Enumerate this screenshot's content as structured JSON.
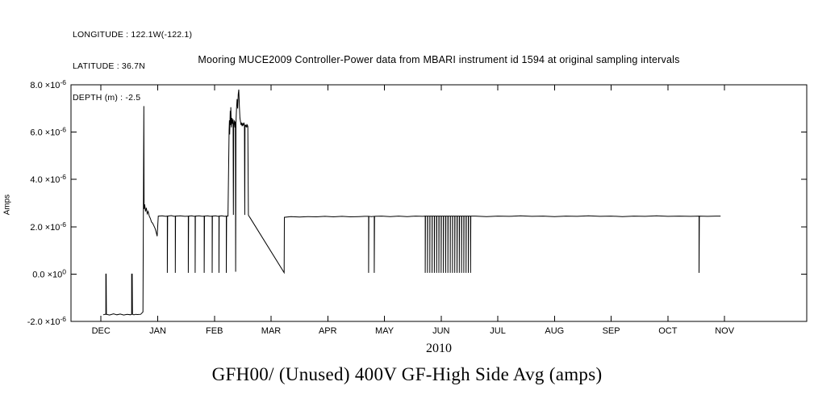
{
  "meta": {
    "longitude": "LONGITUDE : 122.1W(-122.1)",
    "latitude": "LATITUDE : 36.7N",
    "depth": "DEPTH (m) : -2.5"
  },
  "chart_data": {
    "type": "line",
    "title": "Mooring MUCE2009 Controller-Power data from MBARI instrument id 1594 at original sampling intervals",
    "bottom_title": "GFH00/ (Unused) 400V GF-High Side Avg (amps)",
    "xlabel": "2010",
    "ylabel": "Amps",
    "y_units": "amps",
    "y_scale": "1e-6",
    "grid": false,
    "line_color": "#000000",
    "background": "#ffffff",
    "xlim": [
      -0.53,
      12.45
    ],
    "ylim": [
      -2,
      8
    ],
    "x_ticks": [
      {
        "value": 0,
        "label": "DEC"
      },
      {
        "value": 1,
        "label": "JAN"
      },
      {
        "value": 2,
        "label": "FEB"
      },
      {
        "value": 3,
        "label": "MAR"
      },
      {
        "value": 4,
        "label": "APR"
      },
      {
        "value": 5,
        "label": "MAY"
      },
      {
        "value": 6,
        "label": "JUN"
      },
      {
        "value": 7,
        "label": "JUL"
      },
      {
        "value": 8,
        "label": "AUG"
      },
      {
        "value": 9,
        "label": "SEP"
      },
      {
        "value": 10,
        "label": "OCT"
      },
      {
        "value": 11,
        "label": "NOV"
      }
    ],
    "y_ticks": [
      {
        "value": 8,
        "prefix": "8.0 ×10",
        "exponent": "-6",
        "label": "8.0 ×10^-6"
      },
      {
        "value": 6,
        "prefix": "6.0 ×10",
        "exponent": "-6",
        "label": "6.0 ×10^-6"
      },
      {
        "value": 4,
        "prefix": "4.0 ×10",
        "exponent": "-6",
        "label": "4.0 ×10^-6"
      },
      {
        "value": 2,
        "prefix": "2.0 ×10",
        "exponent": "-6",
        "label": "2.0 ×10^-6"
      },
      {
        "value": 0,
        "prefix": "0.0 ×10",
        "exponent": "0",
        "label": "0.0 ×10^0"
      },
      {
        "value": -2,
        "prefix": "-2.0 ×10",
        "exponent": "-6",
        "label": "-2.0 ×10^-6"
      }
    ],
    "series": [
      {
        "name": "GFH00 400V GF-High Side Avg",
        "x_units": "months (0 = DEC 2009)",
        "points": [
          [
            0.04,
            -1.72
          ],
          [
            0.07,
            -1.7
          ],
          [
            0.085,
            -1.7
          ],
          [
            0.085,
            0.0
          ],
          [
            0.09,
            0.0
          ],
          [
            0.095,
            -1.7
          ],
          [
            0.15,
            -1.73
          ],
          [
            0.22,
            -1.68
          ],
          [
            0.28,
            -1.72
          ],
          [
            0.34,
            -1.69
          ],
          [
            0.4,
            -1.73
          ],
          [
            0.46,
            -1.7
          ],
          [
            0.52,
            -1.72
          ],
          [
            0.54,
            -1.7
          ],
          [
            0.54,
            0.0
          ],
          [
            0.55,
            0.0
          ],
          [
            0.555,
            -1.7
          ],
          [
            0.58,
            -1.72
          ],
          [
            0.61,
            -1.7
          ],
          [
            0.64,
            -1.71
          ],
          [
            0.7,
            -1.7
          ],
          [
            0.74,
            -1.6
          ],
          [
            0.755,
            7.1
          ],
          [
            0.76,
            2.75
          ],
          [
            0.77,
            2.95
          ],
          [
            0.785,
            2.65
          ],
          [
            0.8,
            2.8
          ],
          [
            0.815,
            2.55
          ],
          [
            0.83,
            2.65
          ],
          [
            0.85,
            2.45
          ],
          [
            0.87,
            2.35
          ],
          [
            0.89,
            2.2
          ],
          [
            0.91,
            2.15
          ],
          [
            0.93,
            2.05
          ],
          [
            0.95,
            1.95
          ],
          [
            0.965,
            1.85
          ],
          [
            0.98,
            1.7
          ],
          [
            0.99,
            1.6
          ],
          [
            1.01,
            2.45
          ],
          [
            1.08,
            2.46
          ],
          [
            1.14,
            2.44
          ],
          [
            1.17,
            2.45
          ],
          [
            1.17,
            0.05
          ],
          [
            1.175,
            2.45
          ],
          [
            1.24,
            2.47
          ],
          [
            1.29,
            2.44
          ],
          [
            1.31,
            2.45
          ],
          [
            1.31,
            0.05
          ],
          [
            1.315,
            2.45
          ],
          [
            1.4,
            2.46
          ],
          [
            1.48,
            2.44
          ],
          [
            1.54,
            2.45
          ],
          [
            1.54,
            0.05
          ],
          [
            1.545,
            2.45
          ],
          [
            1.6,
            2.46
          ],
          [
            1.64,
            2.44
          ],
          [
            1.66,
            2.45
          ],
          [
            1.66,
            0.05
          ],
          [
            1.665,
            2.45
          ],
          [
            1.73,
            2.46
          ],
          [
            1.79,
            2.44
          ],
          [
            1.82,
            2.45
          ],
          [
            1.82,
            0.05
          ],
          [
            1.825,
            2.45
          ],
          [
            1.88,
            2.46
          ],
          [
            1.93,
            2.44
          ],
          [
            1.96,
            2.45
          ],
          [
            1.96,
            0.05
          ],
          [
            1.965,
            2.45
          ],
          [
            2.02,
            2.46
          ],
          [
            2.06,
            2.44
          ],
          [
            2.08,
            2.45
          ],
          [
            2.08,
            0.05
          ],
          [
            2.085,
            2.45
          ],
          [
            2.13,
            2.46
          ],
          [
            2.18,
            2.44
          ],
          [
            2.21,
            2.45
          ],
          [
            2.21,
            0.05
          ],
          [
            2.215,
            2.45
          ],
          [
            2.24,
            2.45
          ],
          [
            2.26,
            6.1
          ],
          [
            2.265,
            6.5
          ],
          [
            2.27,
            5.9
          ],
          [
            2.28,
            6.9
          ],
          [
            2.285,
            6.3
          ],
          [
            2.29,
            7.05
          ],
          [
            2.3,
            6.2
          ],
          [
            2.31,
            6.6
          ],
          [
            2.32,
            6.35
          ],
          [
            2.33,
            6.55
          ],
          [
            2.335,
            2.5
          ],
          [
            2.34,
            6.3
          ],
          [
            2.35,
            6.5
          ],
          [
            2.36,
            6.2
          ],
          [
            2.37,
            6.45
          ],
          [
            2.375,
            0.1
          ],
          [
            2.38,
            6.4
          ],
          [
            2.39,
            7.0
          ],
          [
            2.4,
            7.4
          ],
          [
            2.41,
            7.0
          ],
          [
            2.42,
            7.6
          ],
          [
            2.43,
            7.8
          ],
          [
            2.44,
            7.1
          ],
          [
            2.45,
            6.6
          ],
          [
            2.46,
            6.45
          ],
          [
            2.47,
            6.3
          ],
          [
            2.48,
            6.4
          ],
          [
            2.49,
            6.25
          ],
          [
            2.5,
            6.35
          ],
          [
            2.51,
            6.3
          ],
          [
            2.52,
            6.4
          ],
          [
            2.53,
            6.3
          ],
          [
            2.535,
            2.5
          ],
          [
            2.54,
            6.3
          ],
          [
            2.55,
            6.25
          ],
          [
            2.56,
            6.3
          ],
          [
            2.57,
            6.2
          ],
          [
            2.58,
            6.3
          ],
          [
            2.59,
            6.25
          ],
          [
            2.6,
            2.5
          ],
          [
            2.61,
            2.45
          ],
          [
            2.63,
            2.38
          ],
          [
            3.23,
            0.06
          ],
          [
            3.235,
            2.4
          ],
          [
            3.35,
            2.43
          ],
          [
            3.5,
            2.41
          ],
          [
            3.65,
            2.43
          ],
          [
            3.8,
            2.42
          ],
          [
            3.95,
            2.44
          ],
          [
            4.1,
            2.42
          ],
          [
            4.25,
            2.44
          ],
          [
            4.4,
            2.42
          ],
          [
            4.55,
            2.43
          ],
          [
            4.65,
            2.44
          ],
          [
            4.72,
            2.44
          ],
          [
            4.72,
            0.05
          ],
          [
            4.725,
            2.44
          ],
          [
            4.77,
            2.43
          ],
          [
            4.82,
            2.44
          ],
          [
            4.82,
            0.05
          ],
          [
            4.825,
            2.44
          ],
          [
            4.95,
            2.45
          ],
          [
            5.1,
            2.43
          ],
          [
            5.25,
            2.45
          ],
          [
            5.4,
            2.43
          ],
          [
            5.55,
            2.45
          ],
          [
            5.68,
            2.44
          ],
          [
            5.72,
            2.45
          ],
          [
            5.72,
            0.05
          ],
          [
            5.724,
            2.45
          ],
          [
            5.76,
            2.45
          ],
          [
            5.76,
            0.05
          ],
          [
            5.764,
            2.45
          ],
          [
            5.8,
            2.45
          ],
          [
            5.8,
            0.05
          ],
          [
            5.804,
            2.45
          ],
          [
            5.84,
            2.45
          ],
          [
            5.84,
            0.05
          ],
          [
            5.844,
            2.45
          ],
          [
            5.88,
            2.45
          ],
          [
            5.88,
            0.05
          ],
          [
            5.884,
            2.45
          ],
          [
            5.92,
            2.45
          ],
          [
            5.92,
            0.05
          ],
          [
            5.924,
            2.45
          ],
          [
            5.96,
            2.45
          ],
          [
            5.96,
            0.05
          ],
          [
            5.964,
            2.45
          ],
          [
            6.0,
            2.45
          ],
          [
            6.0,
            0.05
          ],
          [
            6.004,
            2.45
          ],
          [
            6.04,
            2.45
          ],
          [
            6.04,
            0.05
          ],
          [
            6.044,
            2.45
          ],
          [
            6.08,
            2.45
          ],
          [
            6.08,
            0.05
          ],
          [
            6.084,
            2.45
          ],
          [
            6.12,
            2.45
          ],
          [
            6.12,
            0.05
          ],
          [
            6.124,
            2.45
          ],
          [
            6.16,
            2.45
          ],
          [
            6.16,
            0.05
          ],
          [
            6.164,
            2.45
          ],
          [
            6.2,
            2.45
          ],
          [
            6.2,
            0.05
          ],
          [
            6.204,
            2.45
          ],
          [
            6.24,
            2.45
          ],
          [
            6.24,
            0.05
          ],
          [
            6.244,
            2.45
          ],
          [
            6.28,
            2.45
          ],
          [
            6.28,
            0.05
          ],
          [
            6.284,
            2.45
          ],
          [
            6.32,
            2.45
          ],
          [
            6.32,
            0.05
          ],
          [
            6.324,
            2.45
          ],
          [
            6.36,
            2.45
          ],
          [
            6.36,
            0.05
          ],
          [
            6.364,
            2.45
          ],
          [
            6.4,
            2.45
          ],
          [
            6.4,
            0.05
          ],
          [
            6.404,
            2.45
          ],
          [
            6.44,
            2.45
          ],
          [
            6.44,
            0.05
          ],
          [
            6.444,
            2.45
          ],
          [
            6.48,
            2.45
          ],
          [
            6.48,
            0.05
          ],
          [
            6.484,
            2.45
          ],
          [
            6.52,
            2.45
          ],
          [
            6.52,
            0.05
          ],
          [
            6.524,
            2.45
          ],
          [
            6.6,
            2.45
          ],
          [
            6.8,
            2.43
          ],
          [
            7.0,
            2.45
          ],
          [
            7.2,
            2.44
          ],
          [
            7.4,
            2.46
          ],
          [
            7.6,
            2.44
          ],
          [
            7.8,
            2.45
          ],
          [
            8.0,
            2.43
          ],
          [
            8.2,
            2.45
          ],
          [
            8.4,
            2.44
          ],
          [
            8.6,
            2.46
          ],
          [
            8.8,
            2.44
          ],
          [
            9.0,
            2.45
          ],
          [
            9.2,
            2.43
          ],
          [
            9.4,
            2.45
          ],
          [
            9.6,
            2.44
          ],
          [
            9.8,
            2.46
          ],
          [
            10.0,
            2.44
          ],
          [
            10.2,
            2.45
          ],
          [
            10.4,
            2.44
          ],
          [
            10.55,
            2.45
          ],
          [
            10.55,
            0.05
          ],
          [
            10.555,
            2.45
          ],
          [
            10.7,
            2.44
          ],
          [
            10.85,
            2.45
          ],
          [
            10.93,
            2.45
          ]
        ]
      }
    ]
  }
}
